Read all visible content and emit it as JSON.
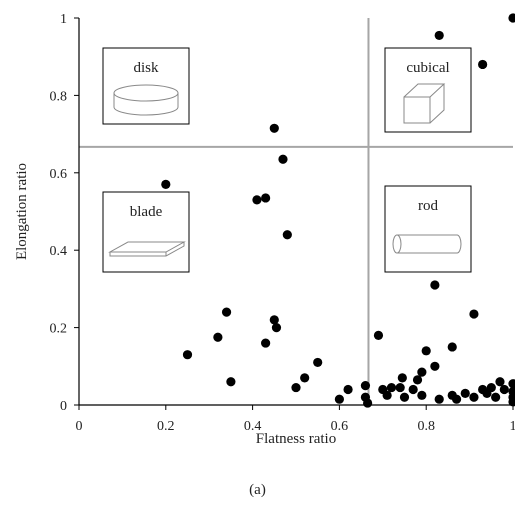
{
  "chart_data": {
    "type": "scatter",
    "title": "",
    "xlabel": "Flatness ratio",
    "ylabel": "Elongation ratio",
    "xlim": [
      0,
      1
    ],
    "ylim": [
      0,
      1
    ],
    "xticks": [
      "0",
      "0.2",
      "0.4",
      "0.6",
      "0.8",
      "1"
    ],
    "yticks": [
      "0",
      "0.2",
      "0.4",
      "0.6",
      "0.8",
      "1"
    ],
    "grid": false,
    "dividers": {
      "x": 0.667,
      "y": 0.667
    },
    "regions": [
      {
        "label": "disk",
        "shape": "disk-shape"
      },
      {
        "label": "cubical",
        "shape": "cube-shape"
      },
      {
        "label": "blade",
        "shape": "blade-shape"
      },
      {
        "label": "rod",
        "shape": "rod-shape"
      }
    ],
    "points": [
      {
        "x": 0.2,
        "y": 0.57
      },
      {
        "x": 0.25,
        "y": 0.13
      },
      {
        "x": 0.32,
        "y": 0.175
      },
      {
        "x": 0.34,
        "y": 0.24
      },
      {
        "x": 0.35,
        "y": 0.06
      },
      {
        "x": 0.41,
        "y": 0.53
      },
      {
        "x": 0.43,
        "y": 0.535
      },
      {
        "x": 0.43,
        "y": 0.16
      },
      {
        "x": 0.45,
        "y": 0.715
      },
      {
        "x": 0.45,
        "y": 0.22
      },
      {
        "x": 0.455,
        "y": 0.2
      },
      {
        "x": 0.47,
        "y": 0.635
      },
      {
        "x": 0.48,
        "y": 0.44
      },
      {
        "x": 0.5,
        "y": 0.045
      },
      {
        "x": 0.52,
        "y": 0.07
      },
      {
        "x": 0.55,
        "y": 0.11
      },
      {
        "x": 0.6,
        "y": 0.015
      },
      {
        "x": 0.62,
        "y": 0.04
      },
      {
        "x": 0.66,
        "y": 0.05
      },
      {
        "x": 0.66,
        "y": 0.02
      },
      {
        "x": 0.665,
        "y": 0.005
      },
      {
        "x": 0.69,
        "y": 0.18
      },
      {
        "x": 0.7,
        "y": 0.04
      },
      {
        "x": 0.71,
        "y": 0.025
      },
      {
        "x": 0.72,
        "y": 0.045
      },
      {
        "x": 0.74,
        "y": 0.045
      },
      {
        "x": 0.745,
        "y": 0.07
      },
      {
        "x": 0.75,
        "y": 0.02
      },
      {
        "x": 0.77,
        "y": 0.04
      },
      {
        "x": 0.78,
        "y": 0.065
      },
      {
        "x": 0.79,
        "y": 0.085
      },
      {
        "x": 0.79,
        "y": 0.025
      },
      {
        "x": 0.8,
        "y": 0.14
      },
      {
        "x": 0.82,
        "y": 0.1
      },
      {
        "x": 0.82,
        "y": 0.31
      },
      {
        "x": 0.83,
        "y": 0.015
      },
      {
        "x": 0.83,
        "y": 0.955
      },
      {
        "x": 0.86,
        "y": 0.025
      },
      {
        "x": 0.86,
        "y": 0.15
      },
      {
        "x": 0.87,
        "y": 0.015
      },
      {
        "x": 0.89,
        "y": 0.03
      },
      {
        "x": 0.91,
        "y": 0.235
      },
      {
        "x": 0.91,
        "y": 0.02
      },
      {
        "x": 0.93,
        "y": 0.04
      },
      {
        "x": 0.93,
        "y": 0.88
      },
      {
        "x": 0.94,
        "y": 0.03
      },
      {
        "x": 0.95,
        "y": 0.045
      },
      {
        "x": 0.96,
        "y": 0.02
      },
      {
        "x": 0.97,
        "y": 0.06
      },
      {
        "x": 0.98,
        "y": 0.04
      },
      {
        "x": 1.0,
        "y": 1.0
      },
      {
        "x": 1.0,
        "y": 0.055
      },
      {
        "x": 1.0,
        "y": 0.035
      },
      {
        "x": 1.0,
        "y": 0.02
      },
      {
        "x": 1.0,
        "y": 0.008
      }
    ],
    "colors": {
      "point": "#000000",
      "axis": "#000000",
      "divider": "#a6a6a6"
    }
  },
  "caption": "(a)"
}
